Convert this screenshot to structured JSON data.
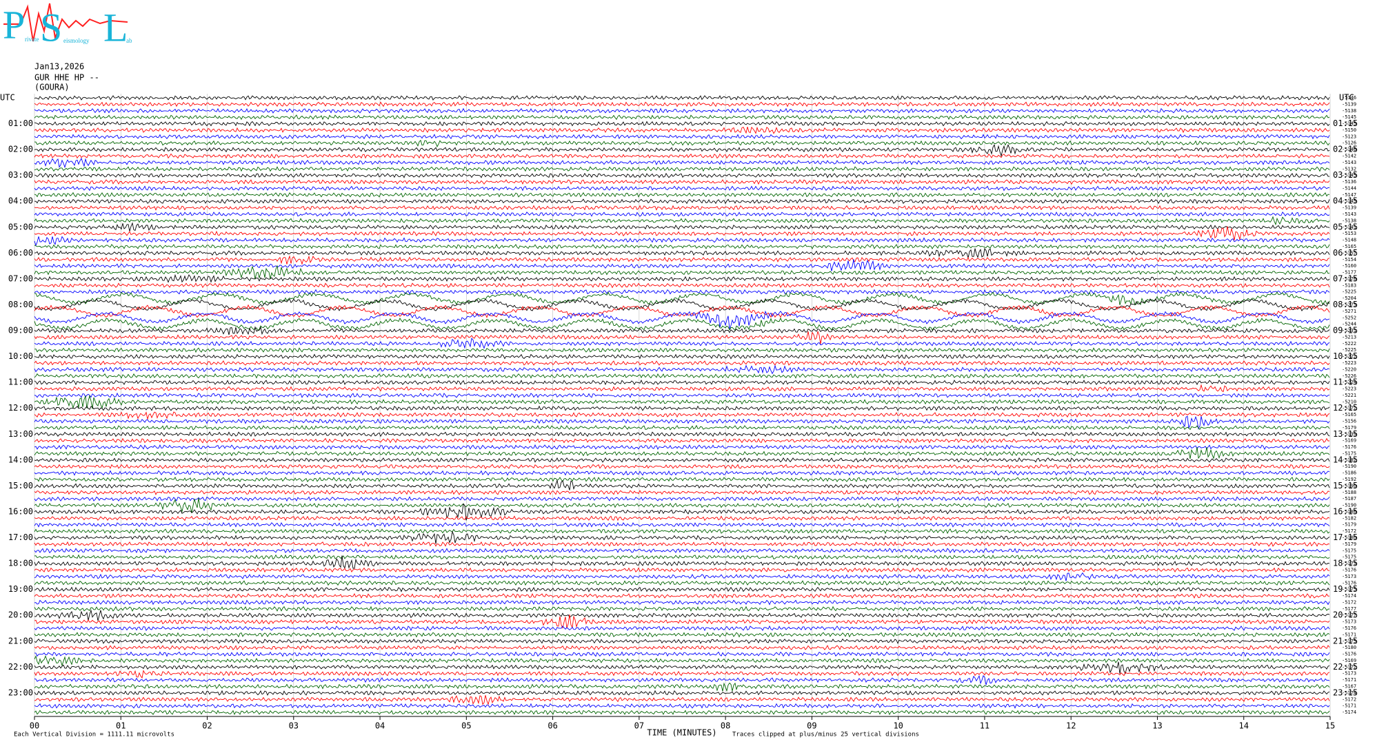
{
  "logo": {
    "letters": [
      "P",
      "S",
      "L"
    ],
    "small": [
      "rivate",
      "eismology",
      "ab"
    ]
  },
  "header": {
    "date": "Jan13,2026",
    "station": "GUR HHE HP --",
    "name": "(GOURA)"
  },
  "utc_label": "UTC",
  "left_labels": [
    "01:00",
    "02:00",
    "03:00",
    "04:00",
    "05:00",
    "06:00",
    "07:00",
    "08:00",
    "09:00",
    "10:00",
    "11:00",
    "12:00",
    "13:00",
    "14:00",
    "15:00",
    "16:00",
    "17:00",
    "18:00",
    "19:00",
    "20:00",
    "21:00",
    "22:00",
    "23:00"
  ],
  "right_labels": [
    "01:15",
    "02:15",
    "03:15",
    "04:15",
    "05:15",
    "06:15",
    "07:15",
    "08:15",
    "09:15",
    "10:15",
    "11:15",
    "12:15",
    "13:15",
    "14:15",
    "15:15",
    "16:15",
    "17:15",
    "18:15",
    "19:15",
    "20:15",
    "21:15",
    "22:15",
    "23:15"
  ],
  "trace_offsets": [
    "-5146",
    "-5139",
    "-5138",
    "-5145",
    "-5145",
    "-5150",
    "-5123",
    "-5126",
    "-5146",
    "-5142",
    "-5143",
    "-5132",
    "-5145",
    "-5136",
    "-5144",
    "-5147",
    "-5145",
    "-5139",
    "-5143",
    "-5138",
    "-5141",
    "-5153",
    "-5148",
    "-5165",
    "-5157",
    "-5154",
    "-5160",
    "-5177",
    "-5176",
    "-5183",
    "-5225",
    "-5204",
    "-5273",
    "-5271",
    "-5252",
    "-5244",
    "-5231",
    "-5213",
    "-5222",
    "-5225",
    "-5222",
    "-5223",
    "-5220",
    "-5226",
    "-5224",
    "-5223",
    "-5221",
    "-5210",
    "-5172",
    "-5165",
    "-5156",
    "-5179",
    "-5139",
    "-5169",
    "-5176",
    "-5175",
    "-5182",
    "-5190",
    "-5186",
    "-5192",
    "-5190",
    "-5188",
    "-5187",
    "-5190",
    "-5186",
    "-5182",
    "-5179",
    "-5172",
    "-5180",
    "-5179",
    "-5175",
    "-5175",
    "-5173",
    "-5176",
    "-5173",
    "-5176",
    "-5175",
    "-5174",
    "-5172",
    "-5177",
    "-5177",
    "-5173",
    "-5176",
    "-5171",
    "-5175",
    "-5180",
    "-5176",
    "-5169",
    "-5172",
    "-5173",
    "-5171",
    "-5167",
    "-5174",
    "-5172",
    "-5171",
    "-5174"
  ],
  "trace_colors": [
    "#000000",
    "#ff0000",
    "#0000ff",
    "#006400"
  ],
  "x_tick_labels": [
    "00",
    "01",
    "02",
    "03",
    "04",
    "05",
    "06",
    "07",
    "08",
    "09",
    "10",
    "11",
    "12",
    "13",
    "14",
    "15"
  ],
  "x_axis_title": "TIME (MINUTES)",
  "footer_left": "Each Vertical Division = 1111.11 microvolts",
  "footer_right": "Traces clipped at plus/minus 25 vertical divisions"
}
